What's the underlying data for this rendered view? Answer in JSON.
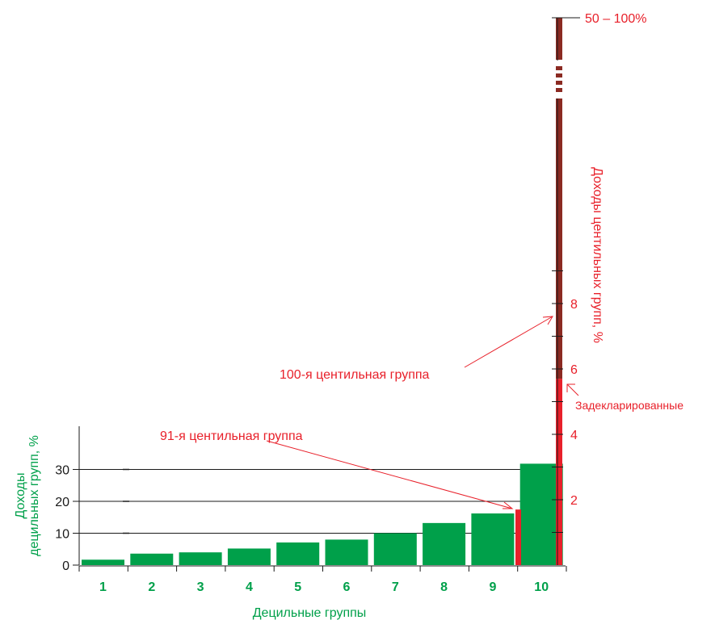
{
  "colors": {
    "decile_bar": "#00a04a",
    "centile_bar": "#e8202a",
    "top_centile_bar": "#8b2a22",
    "text_green": "#00a04a",
    "text_red": "#e8202a",
    "axis": "#1a1a1a"
  },
  "chart_data": {
    "type": "bar",
    "xlabel": "Децильные группы",
    "ylabel": "Доходы децильных групп, %",
    "ylim": [
      0,
      40
    ],
    "yticks": [
      0,
      10,
      20,
      30
    ],
    "grid": true,
    "categories": [
      "1",
      "2",
      "3",
      "4",
      "5",
      "6",
      "7",
      "8",
      "9",
      "10"
    ],
    "values": [
      1.7,
      3.6,
      4.0,
      5.2,
      7.1,
      8.0,
      10.0,
      13.2,
      16.2,
      31.8
    ],
    "centile_axis": {
      "label": "Доходы центильных групп, %",
      "tick_labels": [
        "2",
        "4",
        "6",
        "8",
        "50 – 100%"
      ],
      "centile_91": {
        "label": "91-я центильная группа",
        "value": 1.7
      },
      "centile_100": {
        "label": "100-я центильная группа",
        "declared_value": 5.7,
        "range_label": "50 – 100%",
        "declared_label": "Задекларированные"
      }
    }
  }
}
